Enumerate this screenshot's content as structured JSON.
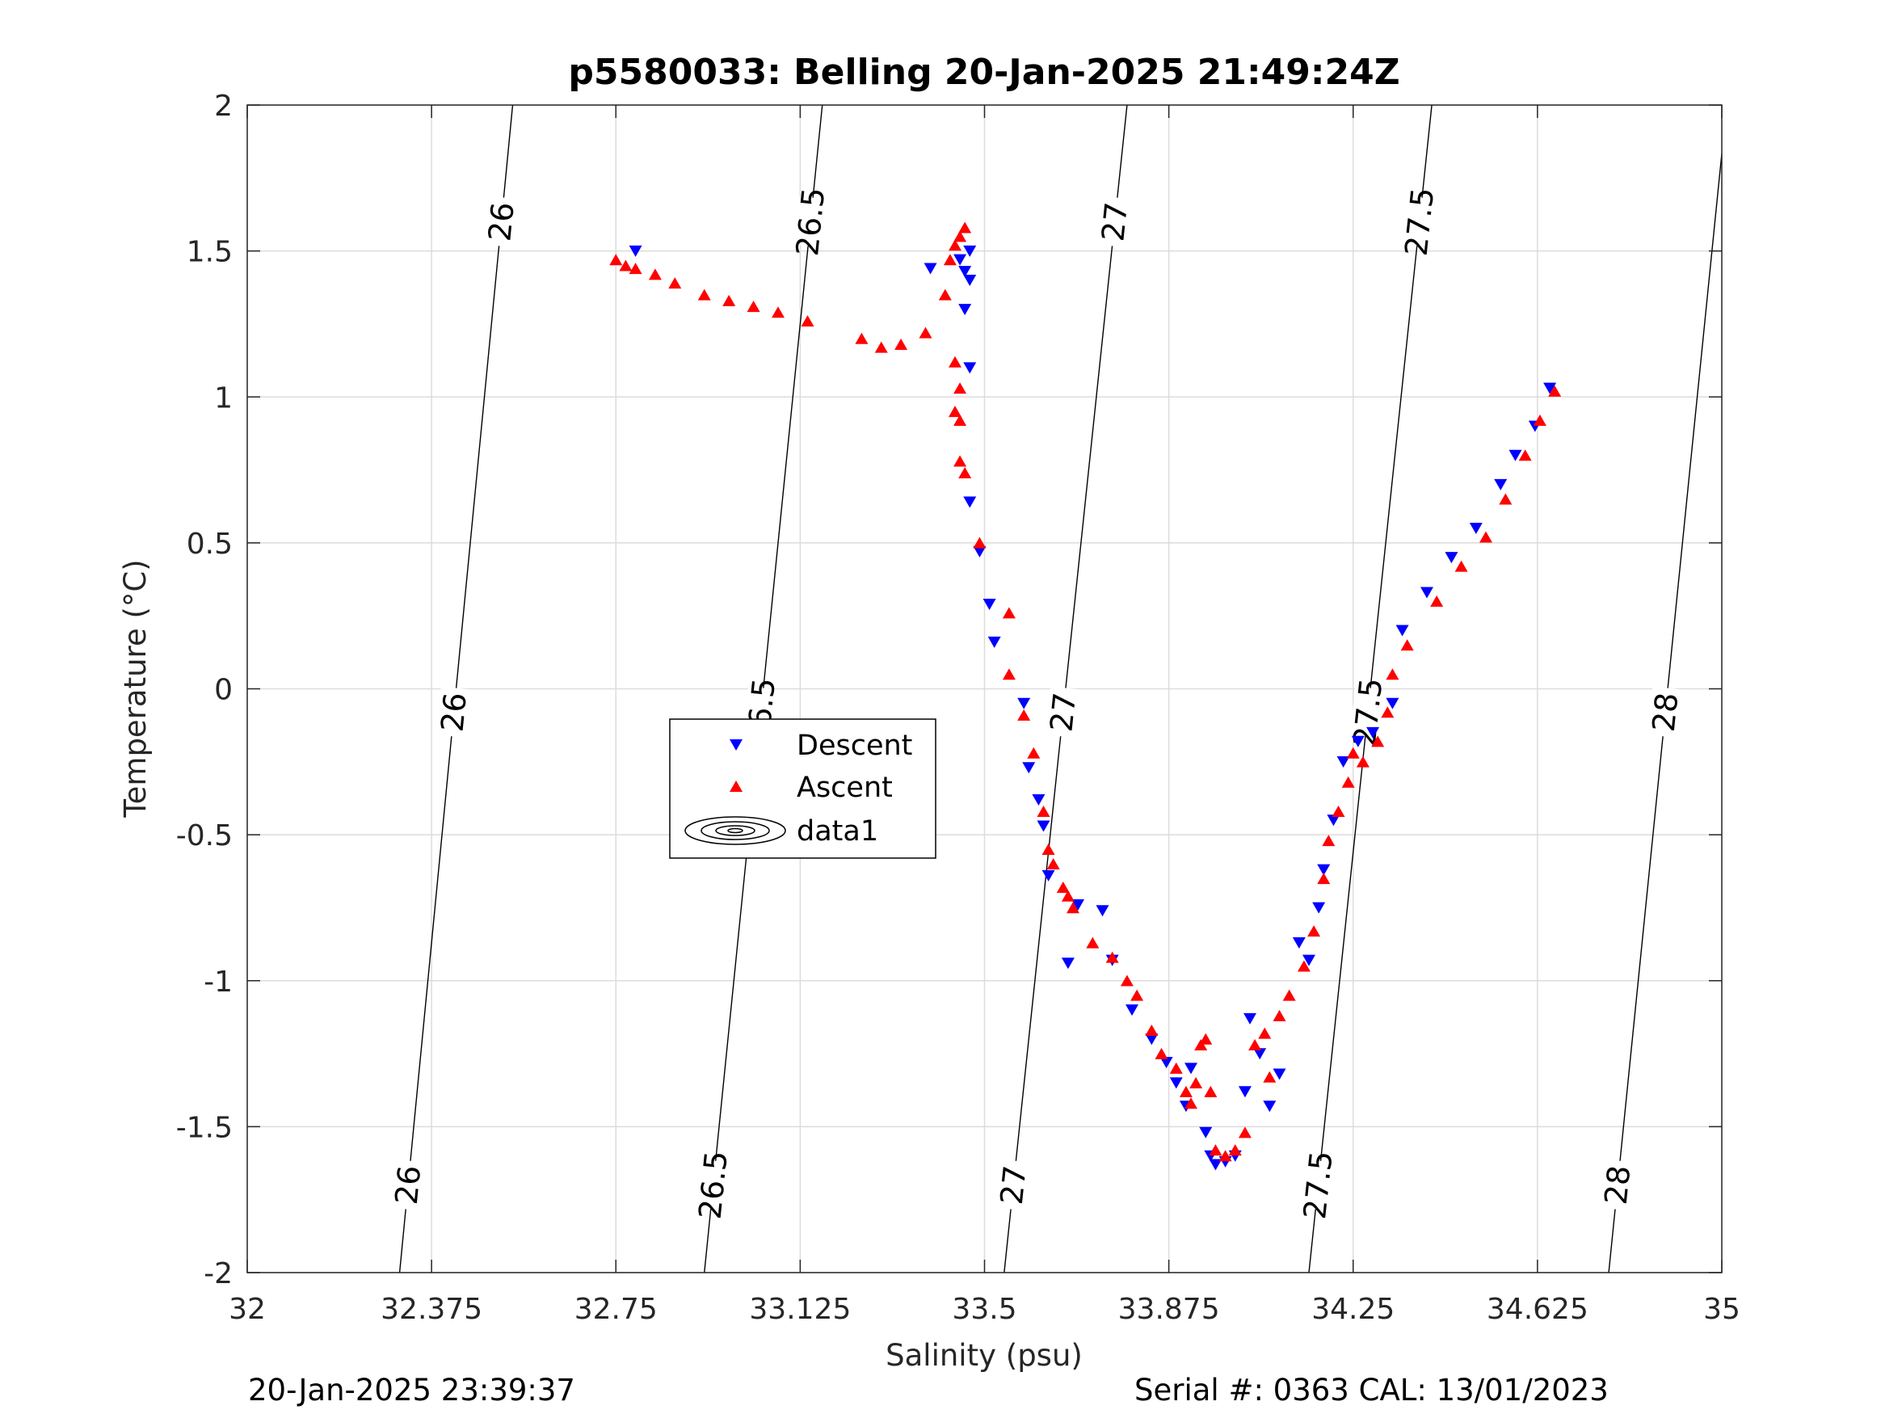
{
  "chart_data": {
    "type": "scatter",
    "title": "p5580033: Belling 20-Jan-2025 21:49:24Z",
    "xlabel": "Salinity (psu)",
    "ylabel": "Temperature (°C)",
    "xlim": [
      32,
      35
    ],
    "ylim": [
      -2,
      2
    ],
    "xticks": [
      "32",
      "32.375",
      "32.75",
      "33.125",
      "33.5",
      "33.875",
      "34.25",
      "34.625",
      "35"
    ],
    "yticks": [
      "-2",
      "-1.5",
      "-1",
      "-0.5",
      "0",
      "0.5",
      "1",
      "1.5",
      "2"
    ],
    "grid": true,
    "legend_position": "center-left",
    "legend": [
      "Descent",
      "Ascent",
      "data1"
    ],
    "colors": {
      "descent": "#0000ff",
      "ascent": "#ff0000",
      "contour": "#000000"
    },
    "series": [
      {
        "name": "Descent",
        "marker": "triangle-down",
        "points": [
          [
            32.79,
            1.5
          ],
          [
            33.39,
            1.44
          ],
          [
            33.45,
            1.47
          ],
          [
            33.47,
            1.5
          ],
          [
            33.46,
            1.43
          ],
          [
            33.47,
            1.4
          ],
          [
            33.46,
            1.3
          ],
          [
            33.47,
            1.1
          ],
          [
            33.47,
            0.64
          ],
          [
            33.49,
            0.47
          ],
          [
            33.51,
            0.29
          ],
          [
            33.52,
            0.16
          ],
          [
            33.58,
            -0.05
          ],
          [
            33.59,
            -0.27
          ],
          [
            33.61,
            -0.38
          ],
          [
            33.62,
            -0.47
          ],
          [
            33.63,
            -0.64
          ],
          [
            33.67,
            -0.94
          ],
          [
            33.69,
            -0.74
          ],
          [
            33.74,
            -0.76
          ],
          [
            33.76,
            -0.93
          ],
          [
            33.8,
            -1.1
          ],
          [
            33.84,
            -1.2
          ],
          [
            33.87,
            -1.28
          ],
          [
            33.89,
            -1.35
          ],
          [
            33.91,
            -1.43
          ],
          [
            33.92,
            -1.3
          ],
          [
            33.95,
            -1.52
          ],
          [
            33.96,
            -1.6
          ],
          [
            33.97,
            -1.63
          ],
          [
            33.99,
            -1.62
          ],
          [
            34.01,
            -1.6
          ],
          [
            34.03,
            -1.38
          ],
          [
            34.04,
            -1.13
          ],
          [
            34.06,
            -1.25
          ],
          [
            34.08,
            -1.43
          ],
          [
            34.1,
            -1.32
          ],
          [
            34.14,
            -0.87
          ],
          [
            34.16,
            -0.93
          ],
          [
            34.18,
            -0.75
          ],
          [
            34.19,
            -0.62
          ],
          [
            34.21,
            -0.45
          ],
          [
            34.23,
            -0.25
          ],
          [
            34.26,
            -0.18
          ],
          [
            34.29,
            -0.15
          ],
          [
            34.33,
            -0.05
          ],
          [
            34.35,
            0.2
          ],
          [
            34.4,
            0.33
          ],
          [
            34.45,
            0.45
          ],
          [
            34.5,
            0.55
          ],
          [
            34.55,
            0.7
          ],
          [
            34.58,
            0.8
          ],
          [
            34.62,
            0.9
          ],
          [
            34.65,
            1.03
          ]
        ]
      },
      {
        "name": "Ascent",
        "marker": "triangle-up",
        "points": [
          [
            32.75,
            1.47
          ],
          [
            32.77,
            1.45
          ],
          [
            32.79,
            1.44
          ],
          [
            32.83,
            1.42
          ],
          [
            32.87,
            1.39
          ],
          [
            32.93,
            1.35
          ],
          [
            32.98,
            1.33
          ],
          [
            33.03,
            1.31
          ],
          [
            33.08,
            1.29
          ],
          [
            33.14,
            1.26
          ],
          [
            33.25,
            1.2
          ],
          [
            33.29,
            1.17
          ],
          [
            33.33,
            1.18
          ],
          [
            33.38,
            1.22
          ],
          [
            33.42,
            1.35
          ],
          [
            33.43,
            1.47
          ],
          [
            33.44,
            1.52
          ],
          [
            33.45,
            1.55
          ],
          [
            33.46,
            1.58
          ],
          [
            33.44,
            1.12
          ],
          [
            33.45,
            1.03
          ],
          [
            33.44,
            0.95
          ],
          [
            33.45,
            0.92
          ],
          [
            33.45,
            0.78
          ],
          [
            33.46,
            0.74
          ],
          [
            33.49,
            0.5
          ],
          [
            33.55,
            0.26
          ],
          [
            33.55,
            0.05
          ],
          [
            33.58,
            -0.09
          ],
          [
            33.6,
            -0.22
          ],
          [
            33.62,
            -0.42
          ],
          [
            33.63,
            -0.55
          ],
          [
            33.64,
            -0.6
          ],
          [
            33.66,
            -0.68
          ],
          [
            33.67,
            -0.71
          ],
          [
            33.68,
            -0.75
          ],
          [
            33.72,
            -0.87
          ],
          [
            33.76,
            -0.92
          ],
          [
            33.79,
            -1.0
          ],
          [
            33.81,
            -1.05
          ],
          [
            33.84,
            -1.17
          ],
          [
            33.86,
            -1.25
          ],
          [
            33.89,
            -1.3
          ],
          [
            33.91,
            -1.38
          ],
          [
            33.92,
            -1.42
          ],
          [
            33.93,
            -1.35
          ],
          [
            33.94,
            -1.22
          ],
          [
            33.95,
            -1.2
          ],
          [
            33.96,
            -1.38
          ],
          [
            33.97,
            -1.58
          ],
          [
            33.99,
            -1.6
          ],
          [
            34.01,
            -1.58
          ],
          [
            34.03,
            -1.52
          ],
          [
            34.05,
            -1.22
          ],
          [
            34.07,
            -1.18
          ],
          [
            34.08,
            -1.33
          ],
          [
            34.1,
            -1.12
          ],
          [
            34.12,
            -1.05
          ],
          [
            34.15,
            -0.95
          ],
          [
            34.17,
            -0.83
          ],
          [
            34.19,
            -0.65
          ],
          [
            34.2,
            -0.52
          ],
          [
            34.22,
            -0.42
          ],
          [
            34.24,
            -0.32
          ],
          [
            34.25,
            -0.22
          ],
          [
            34.27,
            -0.25
          ],
          [
            34.3,
            -0.18
          ],
          [
            34.32,
            -0.08
          ],
          [
            34.33,
            0.05
          ],
          [
            34.36,
            0.15
          ],
          [
            34.42,
            0.3
          ],
          [
            34.47,
            0.42
          ],
          [
            34.52,
            0.52
          ],
          [
            34.56,
            0.65
          ],
          [
            34.6,
            0.8
          ],
          [
            34.63,
            0.92
          ],
          [
            34.66,
            1.02
          ]
        ]
      }
    ],
    "contours": [
      {
        "level": "26",
        "s_at_t_min": 32.31,
        "s_at_t_max": 32.54
      },
      {
        "level": "26.5",
        "s_at_t_min": 32.93,
        "s_at_t_max": 33.17
      },
      {
        "level": "27",
        "s_at_t_min": 33.54,
        "s_at_t_max": 33.79
      },
      {
        "level": "27.5",
        "s_at_t_min": 34.16,
        "s_at_t_max": 34.41
      },
      {
        "level": "28",
        "s_at_t_min": 34.77,
        "s_at_t_max": 35.01
      }
    ]
  },
  "footer": {
    "timestamp": "20-Jan-2025 23:39:37",
    "serial": "Serial #: 0363  CAL: 13/01/2023"
  }
}
